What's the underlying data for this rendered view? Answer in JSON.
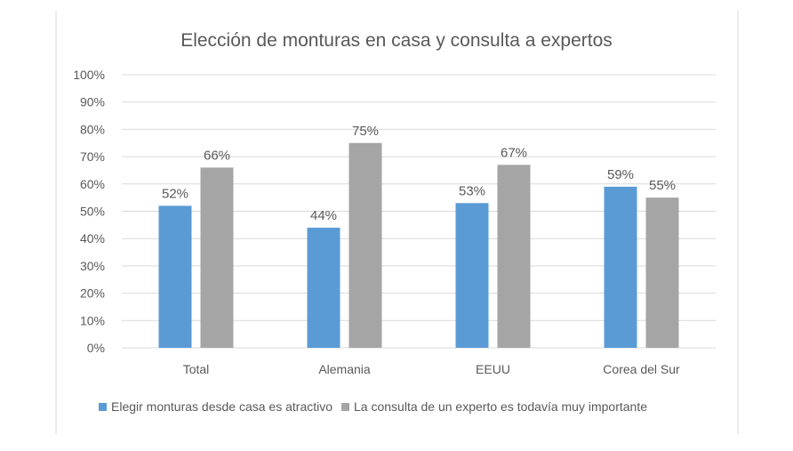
{
  "chart_data": {
    "type": "bar",
    "title": "Elección de monturas en casa y consulta a expertos",
    "xlabel": "",
    "ylabel": "",
    "categories": [
      "Total",
      "Alemania",
      "EEUU",
      "Corea del Sur"
    ],
    "series": [
      {
        "name": "Elegir monturas desde casa es atractivo",
        "values": [
          52,
          44,
          53,
          59
        ],
        "labels": [
          "52%",
          "44%",
          "53%",
          "59%"
        ],
        "color": "#5B9BD5"
      },
      {
        "name": "La consulta de un experto es todavía muy importante",
        "values": [
          66,
          75,
          67,
          55
        ],
        "labels": [
          "66%",
          "75%",
          "67%",
          "55%"
        ],
        "color": "#A5A5A5"
      }
    ],
    "ylim": [
      0,
      100
    ],
    "yticks": [
      0,
      10,
      20,
      30,
      40,
      50,
      60,
      70,
      80,
      90,
      100
    ],
    "ytick_labels": [
      "0%",
      "10%",
      "20%",
      "30%",
      "40%",
      "50%",
      "60%",
      "70%",
      "80%",
      "90%",
      "100%"
    ],
    "grid": true,
    "legend_position": "bottom"
  },
  "colors": {
    "gridline": "#D9D9D9",
    "text": "#595959",
    "frame": "#D9D9D9"
  }
}
